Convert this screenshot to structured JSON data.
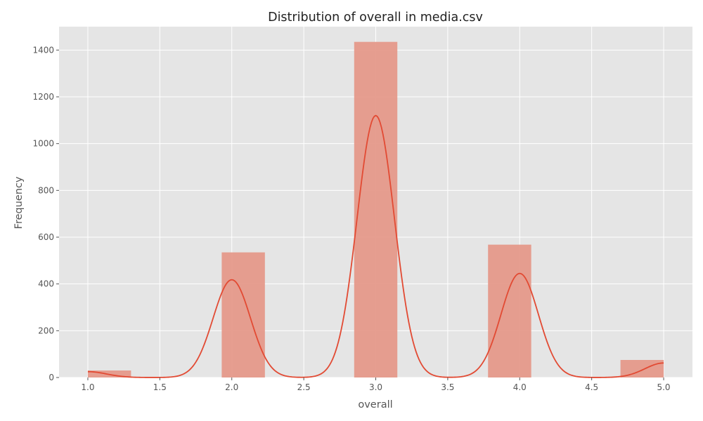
{
  "chart_data": {
    "type": "bar",
    "title": "Distribution of overall in media.csv",
    "xlabel": "overall",
    "ylabel": "Frequency",
    "xlim": [
      0.8,
      5.2
    ],
    "ylim": [
      0,
      1500
    ],
    "x_ticks": [
      "1.0",
      "1.5",
      "2.0",
      "2.5",
      "3.0",
      "3.5",
      "4.0",
      "4.5",
      "5.0"
    ],
    "y_ticks": [
      "0",
      "200",
      "400",
      "600",
      "800",
      "1000",
      "1200",
      "1400"
    ],
    "bins": [
      {
        "x0": 1.0,
        "x1": 1.3,
        "value": 30
      },
      {
        "x0": 1.93,
        "x1": 2.23,
        "value": 535
      },
      {
        "x0": 2.85,
        "x1": 3.15,
        "value": 1435
      },
      {
        "x0": 3.78,
        "x1": 4.08,
        "value": 568
      },
      {
        "x0": 4.7,
        "x1": 5.0,
        "value": 75
      }
    ],
    "kde": {
      "peaks": [
        {
          "x": 1.0,
          "height": 25,
          "sigma": 0.13
        },
        {
          "x": 2.0,
          "height": 418,
          "sigma": 0.13
        },
        {
          "x": 3.0,
          "height": 1120,
          "sigma": 0.13
        },
        {
          "x": 4.0,
          "height": 445,
          "sigma": 0.13
        },
        {
          "x": 5.0,
          "height": 62,
          "sigma": 0.13
        }
      ],
      "x_range": [
        1.0,
        5.0
      ]
    },
    "grid": true,
    "colors": {
      "background": "#e5e5e5",
      "grid": "#ffffff",
      "bar": "#e5998a",
      "line": "#e24a33"
    }
  }
}
